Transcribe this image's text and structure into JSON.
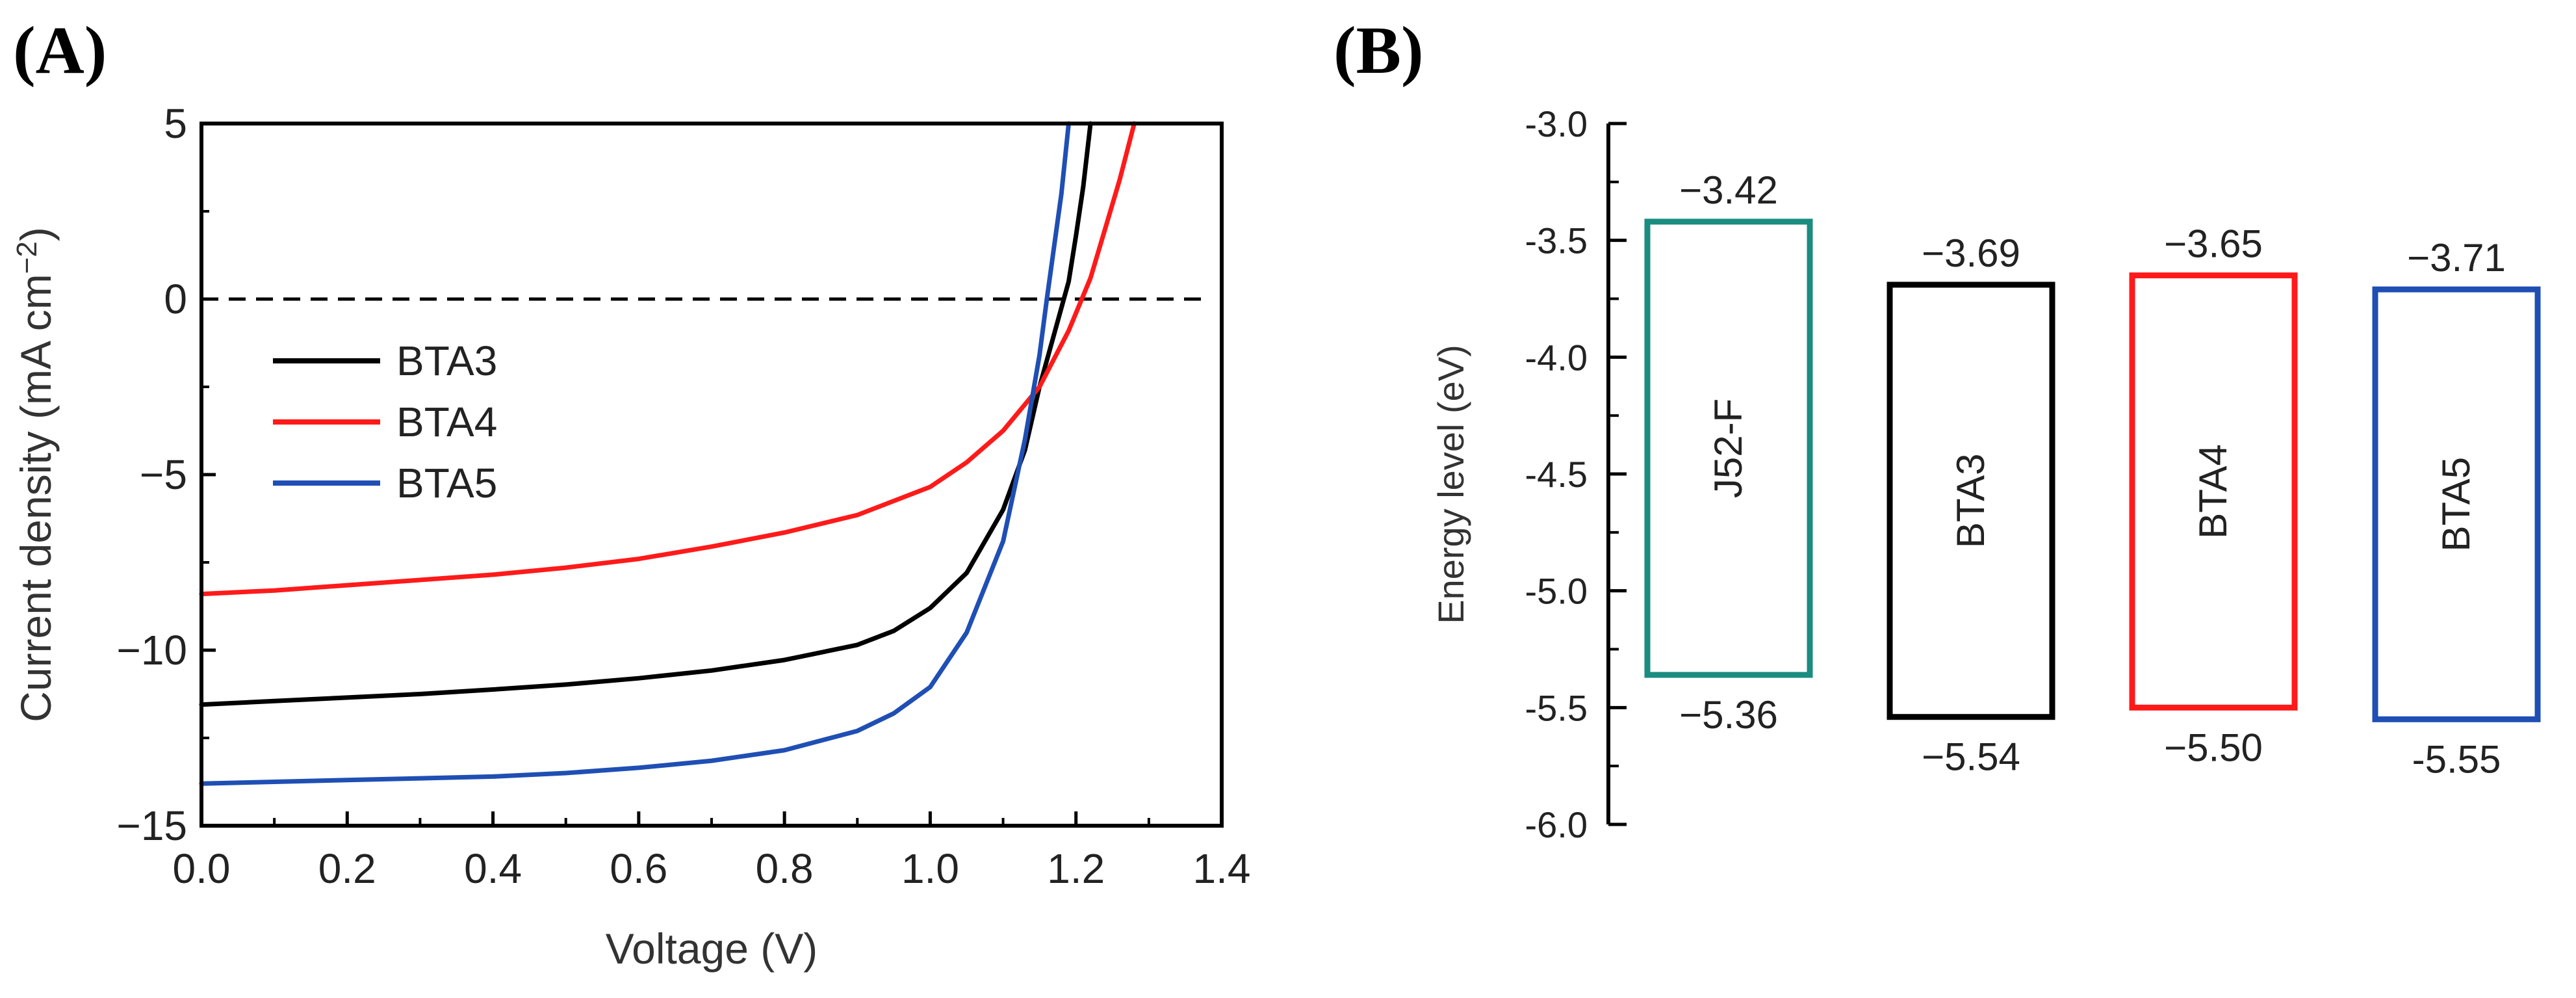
{
  "chart_data": [
    {
      "panel_label": "(A)",
      "type": "line",
      "xlabel": "Voltage (V)",
      "ylabel": "Current density (mA cm",
      "ylabel_sup": "−2",
      "ylabel_close": ")",
      "xlim": [
        0.0,
        1.4
      ],
      "ylim": [
        -15,
        5
      ],
      "x_ticks": [
        "0.0",
        "0.2",
        "0.4",
        "0.6",
        "0.8",
        "1.0",
        "1.2",
        "1.4"
      ],
      "y_ticks": [
        "5",
        "0",
        "−5",
        "−10",
        "−15"
      ],
      "x_tick_values": [
        0.0,
        0.2,
        0.4,
        0.6,
        0.8,
        1.0,
        1.2,
        1.4
      ],
      "y_tick_values": [
        5,
        0,
        -5,
        -10,
        -15
      ],
      "zero_line": "dashed",
      "legend_position": "left",
      "series": [
        {
          "name": "BTA3",
          "color": "#000000",
          "points": [
            [
              0.0,
              -11.55
            ],
            [
              0.1,
              -11.45
            ],
            [
              0.2,
              -11.35
            ],
            [
              0.3,
              -11.25
            ],
            [
              0.4,
              -11.12
            ],
            [
              0.5,
              -10.98
            ],
            [
              0.6,
              -10.8
            ],
            [
              0.7,
              -10.58
            ],
            [
              0.8,
              -10.28
            ],
            [
              0.9,
              -9.85
            ],
            [
              0.95,
              -9.45
            ],
            [
              1.0,
              -8.8
            ],
            [
              1.05,
              -7.8
            ],
            [
              1.1,
              -6.0
            ],
            [
              1.13,
              -4.3
            ],
            [
              1.15,
              -2.5
            ],
            [
              1.17,
              -1.0
            ],
            [
              1.19,
              0.5
            ],
            [
              1.2,
              1.8
            ],
            [
              1.21,
              3.2
            ],
            [
              1.22,
              5.0
            ]
          ]
        },
        {
          "name": "BTA4",
          "color": "#ff1a1a",
          "points": [
            [
              0.0,
              -8.4
            ],
            [
              0.1,
              -8.3
            ],
            [
              0.2,
              -8.15
            ],
            [
              0.3,
              -8.0
            ],
            [
              0.4,
              -7.85
            ],
            [
              0.5,
              -7.65
            ],
            [
              0.6,
              -7.4
            ],
            [
              0.7,
              -7.05
            ],
            [
              0.8,
              -6.65
            ],
            [
              0.9,
              -6.15
            ],
            [
              1.0,
              -5.35
            ],
            [
              1.05,
              -4.65
            ],
            [
              1.1,
              -3.75
            ],
            [
              1.15,
              -2.5
            ],
            [
              1.19,
              -0.9
            ],
            [
              1.22,
              0.6
            ],
            [
              1.24,
              2.0
            ],
            [
              1.26,
              3.4
            ],
            [
              1.28,
              5.0
            ]
          ]
        },
        {
          "name": "BTA5",
          "color": "#1f4fb4",
          "points": [
            [
              0.0,
              -13.8
            ],
            [
              0.1,
              -13.75
            ],
            [
              0.2,
              -13.7
            ],
            [
              0.3,
              -13.65
            ],
            [
              0.4,
              -13.6
            ],
            [
              0.5,
              -13.5
            ],
            [
              0.6,
              -13.35
            ],
            [
              0.7,
              -13.15
            ],
            [
              0.8,
              -12.85
            ],
            [
              0.9,
              -12.3
            ],
            [
              0.95,
              -11.8
            ],
            [
              1.0,
              -11.05
            ],
            [
              1.05,
              -9.5
            ],
            [
              1.1,
              -6.9
            ],
            [
              1.13,
              -4.0
            ],
            [
              1.15,
              -1.6
            ],
            [
              1.16,
              0.0
            ],
            [
              1.17,
              1.5
            ],
            [
              1.18,
              3.0
            ],
            [
              1.19,
              5.0
            ]
          ]
        }
      ]
    },
    {
      "panel_label": "(B)",
      "type": "bar",
      "ylabel": "Energy level (eV)",
      "ylim": [
        -6.0,
        -3.0
      ],
      "y_ticks": [
        "-3.0",
        "-3.5",
        "-4.0",
        "-4.5",
        "-5.0",
        "-5.5",
        "-6.0"
      ],
      "y_tick_values": [
        -3.0,
        -3.5,
        -4.0,
        -4.5,
        -5.0,
        -5.5,
        -6.0
      ],
      "boxes": [
        {
          "name": "J52-F",
          "lumo": -3.42,
          "homo": -5.36,
          "lumo_label": "−3.42",
          "homo_label": "−5.36",
          "color": "#1a8c80"
        },
        {
          "name": "BTA3",
          "lumo": -3.69,
          "homo": -5.54,
          "lumo_label": "−3.69",
          "homo_label": "−5.54",
          "color": "#000000"
        },
        {
          "name": "BTA4",
          "lumo": -3.65,
          "homo": -5.5,
          "lumo_label": "−3.65",
          "homo_label": "−5.50",
          "color": "#ff1a1a"
        },
        {
          "name": "BTA5",
          "lumo": -3.71,
          "homo": -5.55,
          "lumo_label": "−3.71",
          "homo_label": "-5.55",
          "color": "#1f4fb4"
        }
      ]
    }
  ]
}
